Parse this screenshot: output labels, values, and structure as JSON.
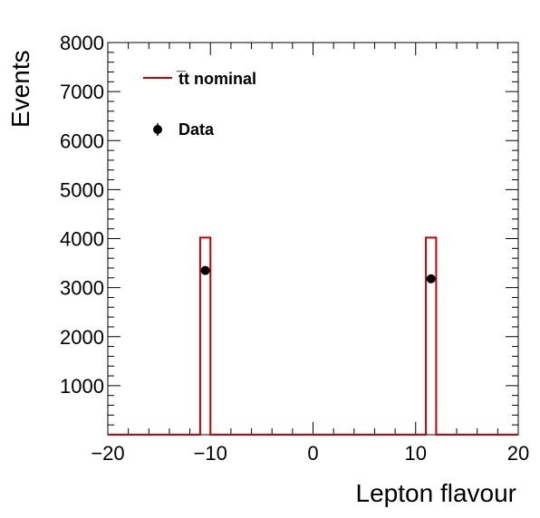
{
  "chart_data": {
    "type": "histogram",
    "xlabel": "Lepton flavour",
    "ylabel": "Events",
    "xlim": [
      -20,
      20
    ],
    "ylim": [
      0,
      8000
    ],
    "x_ticks": [
      -20,
      -10,
      0,
      10,
      20
    ],
    "x_tick_labels": [
      "−20",
      "−10",
      "0",
      "10",
      "20"
    ],
    "y_ticks": [
      1000,
      2000,
      3000,
      4000,
      5000,
      6000,
      7000,
      8000
    ],
    "y_tick_labels": [
      "1000",
      "2000",
      "3000",
      "4000",
      "5000",
      "6000",
      "7000",
      "8000"
    ],
    "bin_width": 1,
    "mc": {
      "name": "t̅t nominal",
      "color": "#cc0000",
      "bins": [
        {
          "low": -11,
          "high": -10,
          "value": 4020
        },
        {
          "low": 11,
          "high": 12,
          "value": 4020
        }
      ]
    },
    "data": {
      "name": "Data",
      "color": "#000000",
      "points": [
        {
          "x": -10.5,
          "y": 3350,
          "err": 58
        },
        {
          "x": 11.5,
          "y": 3180,
          "err": 56
        }
      ]
    },
    "legend_position": "top-left"
  }
}
